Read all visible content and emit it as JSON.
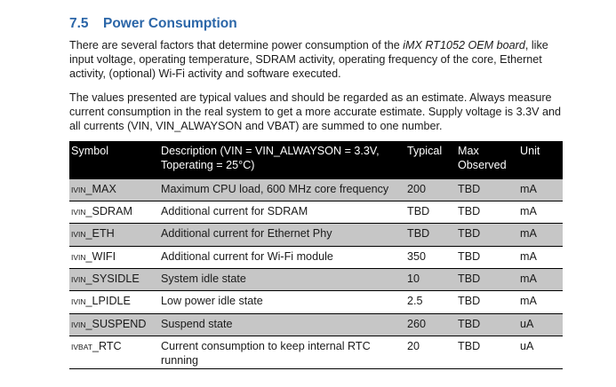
{
  "section": {
    "number": "7.5",
    "title": "Power Consumption"
  },
  "paragraph1": {
    "before": "There are several factors that determine power consumption of the ",
    "emphasis": "iMX RT1052 OEM board",
    "after": ", like input voltage, operating temperature, SDRAM activity, operating frequency of the core, Ethernet activity, (optional) Wi-Fi activity and software executed."
  },
  "paragraph2": "The values presented are typical values and should be regarded as an estimate. Always measure current consumption in the real system to get a more accurate estimate. Supply voltage is 3.3V and all currents (VIN, VIN_ALWAYSON and VBAT) are summed to one number.",
  "table": {
    "headers": {
      "symbol": "Symbol",
      "description_line1": "Description (VIN = VIN_ALWAYSON = 3.3V,",
      "description_line2": "Toperating = 25°C)",
      "typical": "Typical",
      "max_line1": "Max",
      "max_line2": "Observed",
      "unit": "Unit"
    },
    "rows": [
      {
        "sym_pre": "I",
        "sym_sub": "VIN",
        "sym_main": "_MAX",
        "description": "Maximum CPU load, 600 MHz core frequency",
        "typical": "200",
        "max": "TBD",
        "unit": "mA"
      },
      {
        "sym_pre": "I",
        "sym_sub": "VIN",
        "sym_main": "_SDRAM",
        "description": "Additional current for SDRAM",
        "typical": "TBD",
        "max": "TBD",
        "unit": "mA"
      },
      {
        "sym_pre": "I",
        "sym_sub": "VIN",
        "sym_main": "_ETH",
        "description": "Additional current for Ethernet Phy",
        "typical": "TBD",
        "max": "TBD",
        "unit": "mA"
      },
      {
        "sym_pre": "I",
        "sym_sub": "VIN",
        "sym_main": "_WIFI",
        "description": "Additional current for Wi-Fi module",
        "typical": "350",
        "max": "TBD",
        "unit": "mA"
      },
      {
        "sym_pre": "I",
        "sym_sub": "VIN",
        "sym_main": "_SYSIDLE",
        "description": "System idle state",
        "typical": "10",
        "max": "TBD",
        "unit": "mA"
      },
      {
        "sym_pre": "I",
        "sym_sub": "VIN",
        "sym_main": "_LPIDLE",
        "description": "Low power idle state",
        "typical": "2.5",
        "max": "TBD",
        "unit": "mA"
      },
      {
        "sym_pre": "I",
        "sym_sub": "VIN",
        "sym_main": "_SUSPEND",
        "description": "Suspend state",
        "typical": "260",
        "max": "TBD",
        "unit": "uA"
      },
      {
        "sym_pre": "I",
        "sym_sub": "VBAT",
        "sym_main": "_RTC",
        "description_line1": "Current consumption to keep internal RTC",
        "description_line2": "running",
        "typical": "20",
        "max": "TBD",
        "unit": "uA"
      }
    ]
  }
}
